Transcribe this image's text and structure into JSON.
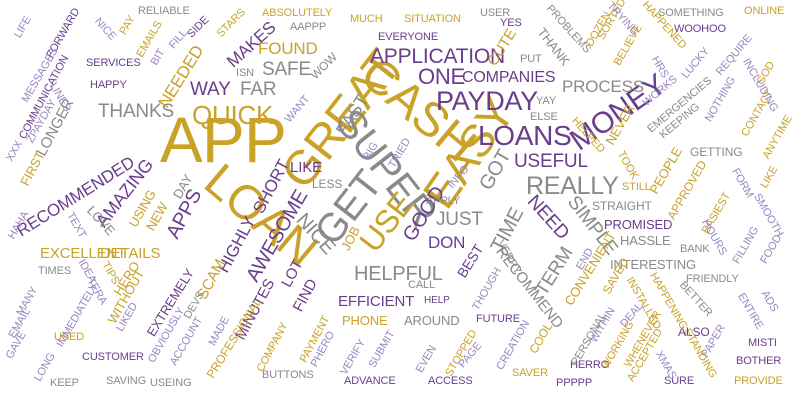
{
  "colors": {
    "gold": "#c9a227",
    "purple": "#6a3d8c",
    "lavender": "#9a86c0",
    "gray": "#8a8a8a"
  },
  "words": [
    {
      "text": "APP",
      "color": "gold"
    },
    {
      "text": "LOAN",
      "color": "gold"
    },
    {
      "text": "GREAT",
      "color": "gold"
    },
    {
      "text": "CASH",
      "color": "gold"
    },
    {
      "text": "EASY",
      "color": "gold"
    },
    {
      "text": "SUPER",
      "color": "gray"
    },
    {
      "text": "GET",
      "color": "gray"
    },
    {
      "text": "USE",
      "color": "gold"
    },
    {
      "text": "PAYDAY",
      "color": "purple"
    },
    {
      "text": "LOANS",
      "color": "purple"
    },
    {
      "text": "MONEY",
      "color": "purple"
    },
    {
      "text": "QUICK",
      "color": "gold"
    },
    {
      "text": "REALLY",
      "color": "gray"
    },
    {
      "text": "APPLICATION",
      "color": "purple"
    },
    {
      "text": "ONE",
      "color": "purple"
    },
    {
      "text": "THANKS",
      "color": "gray"
    },
    {
      "text": "AWESOME",
      "color": "purple"
    },
    {
      "text": "HELPFUL",
      "color": "gray"
    },
    {
      "text": "NICE",
      "color": "gray"
    },
    {
      "text": "FAST",
      "color": "gray"
    },
    {
      "text": "AMAZING",
      "color": "purple"
    },
    {
      "text": "RECOMMENDED",
      "color": "purple"
    },
    {
      "text": "APPS",
      "color": "purple"
    },
    {
      "text": "WAY",
      "color": "purple"
    },
    {
      "text": "FAR",
      "color": "gray"
    },
    {
      "text": "SAFE",
      "color": "gray"
    },
    {
      "text": "FOUND",
      "color": "gold"
    },
    {
      "text": "NEEDED",
      "color": "gold"
    },
    {
      "text": "MAKES",
      "color": "purple"
    },
    {
      "text": "COMPANIES",
      "color": "purple"
    },
    {
      "text": "PROCESS",
      "color": "gray"
    },
    {
      "text": "USEFUL",
      "color": "purple"
    },
    {
      "text": "GOT",
      "color": "gray"
    },
    {
      "text": "GOOD",
      "color": "purple"
    },
    {
      "text": "JUST",
      "color": "gray"
    },
    {
      "text": "DON",
      "color": "purple"
    },
    {
      "text": "TIME",
      "color": "gray"
    },
    {
      "text": "NEED",
      "color": "purple"
    },
    {
      "text": "SIMPLE",
      "color": "gray"
    },
    {
      "text": "TERM",
      "color": "gray"
    },
    {
      "text": "SHORT",
      "color": "purple"
    },
    {
      "text": "LIKE",
      "color": "purple"
    },
    {
      "text": "LESS",
      "color": "gray"
    },
    {
      "text": "EFFICIENT",
      "color": "purple"
    },
    {
      "text": "HIGHLY",
      "color": "purple"
    },
    {
      "text": "DETAILS",
      "color": "gold"
    },
    {
      "text": "EXCELLENT",
      "color": "gold"
    },
    {
      "text": "SCAM",
      "color": "gold"
    },
    {
      "text": "FIND",
      "color": "purple"
    },
    {
      "text": "LOT",
      "color": "purple"
    },
    {
      "text": "MINUTES",
      "color": "purple"
    },
    {
      "text": "PROFESSIONAL",
      "color": "gold"
    },
    {
      "text": "PHONE",
      "color": "gold"
    },
    {
      "text": "AROUND",
      "color": "gray"
    },
    {
      "text": "FUTURE",
      "color": "purple"
    },
    {
      "text": "STRAIGHT",
      "color": "gray"
    },
    {
      "text": "PROMISED",
      "color": "purple"
    },
    {
      "text": "HASSLE",
      "color": "gray"
    },
    {
      "text": "INTERESTING",
      "color": "gray"
    },
    {
      "text": "CONVENIENT",
      "color": "gold"
    },
    {
      "text": "RECOMMEND",
      "color": "gray"
    },
    {
      "text": "BEST",
      "color": "purple"
    },
    {
      "text": "ALSO",
      "color": "purple"
    },
    {
      "text": "SAVER",
      "color": "gold"
    },
    {
      "text": "ADVANCE",
      "color": "purple"
    },
    {
      "text": "ACCESS",
      "color": "purple"
    },
    {
      "text": "PPPPP",
      "color": "purple"
    },
    {
      "text": "HERRO",
      "color": "purple"
    },
    {
      "text": "SURE",
      "color": "purple"
    },
    {
      "text": "PROVIDE",
      "color": "gold"
    },
    {
      "text": "BOTHER",
      "color": "purple"
    },
    {
      "text": "MISTI",
      "color": "purple"
    },
    {
      "text": "BUTTONS",
      "color": "gray"
    },
    {
      "text": "SAVING",
      "color": "gray"
    },
    {
      "text": "USEING",
      "color": "gray"
    },
    {
      "text": "KEEP",
      "color": "gray"
    },
    {
      "text": "CUSTOMER",
      "color": "purple"
    },
    {
      "text": "USED",
      "color": "gold"
    },
    {
      "text": "TIMES",
      "color": "gray"
    },
    {
      "text": "HERO",
      "color": "gold"
    },
    {
      "text": "WITHOUT",
      "color": "gold"
    },
    {
      "text": "EXTREMELY",
      "color": "purple"
    },
    {
      "text": "USING",
      "color": "gold"
    },
    {
      "text": "NEW",
      "color": "gold"
    },
    {
      "text": "LOVE",
      "color": "gray"
    },
    {
      "text": "DAY",
      "color": "gray"
    },
    {
      "text": "FIRST",
      "color": "gold"
    },
    {
      "text": "LONGER",
      "color": "gray"
    },
    {
      "text": "HAPPY",
      "color": "purple"
    },
    {
      "text": "SERVICES",
      "color": "purple"
    },
    {
      "text": "ABSOLUTELY",
      "color": "gold"
    },
    {
      "text": "AAPPP",
      "color": "gray"
    },
    {
      "text": "MUCH",
      "color": "gold"
    },
    {
      "text": "SITUATION",
      "color": "gold"
    },
    {
      "text": "EVERYONE",
      "color": "purple"
    },
    {
      "text": "USER",
      "color": "gray"
    },
    {
      "text": "YES",
      "color": "purple"
    },
    {
      "text": "WOW",
      "color": "gray"
    },
    {
      "text": "ISN",
      "color": "gray"
    },
    {
      "text": "RELIABLE",
      "color": "gray"
    },
    {
      "text": "STARS",
      "color": "gold"
    },
    {
      "text": "SIDE",
      "color": "purple"
    },
    {
      "text": "FILL",
      "color": "lavender"
    },
    {
      "text": "EMAILS",
      "color": "gold"
    },
    {
      "text": "PAY",
      "color": "gold"
    },
    {
      "text": "NICE",
      "color": "lavender"
    },
    {
      "text": "FORWARD",
      "color": "purple"
    },
    {
      "text": "LIFE",
      "color": "lavender"
    },
    {
      "text": "MESSAGES",
      "color": "lavender"
    },
    {
      "text": "COMMUNICATION",
      "color": "purple"
    },
    {
      "text": "LINES",
      "color": "lavender"
    },
    {
      "text": "BIT",
      "color": "lavender"
    },
    {
      "text": "XXX",
      "color": "lavender"
    },
    {
      "text": "ZPAYDAY",
      "color": "lavender"
    },
    {
      "text": "CUTE",
      "color": "gold"
    },
    {
      "text": "PUT",
      "color": "gray"
    },
    {
      "text": "THANK",
      "color": "gray"
    },
    {
      "text": "PROBLEMS",
      "color": "gray"
    },
    {
      "text": "DOZEN",
      "color": "gold"
    },
    {
      "text": "SORTED",
      "color": "gold"
    },
    {
      "text": "BELIEVE",
      "color": "gold"
    },
    {
      "text": "TRYING",
      "color": "lavender"
    },
    {
      "text": "HAPPENED",
      "color": "gold"
    },
    {
      "text": "SOMETHING",
      "color": "gray"
    },
    {
      "text": "WOOHOO",
      "color": "purple"
    },
    {
      "text": "ONLINE",
      "color": "gold"
    },
    {
      "text": "HRS",
      "color": "lavender"
    },
    {
      "text": "LUCKY",
      "color": "lavender"
    },
    {
      "text": "REQUIRE",
      "color": "lavender"
    },
    {
      "text": "GOD",
      "color": "gold"
    },
    {
      "text": "INCLUDING",
      "color": "lavender"
    },
    {
      "text": "NOTHING",
      "color": "lavender"
    },
    {
      "text": "CONTACT",
      "color": "gold"
    },
    {
      "text": "ANYTIME",
      "color": "gold"
    },
    {
      "text": "EMERGENCIES",
      "color": "gray"
    },
    {
      "text": "KEEPING",
      "color": "gray"
    },
    {
      "text": "WORKS",
      "color": "lavender"
    },
    {
      "text": "NEVER",
      "color": "gold"
    },
    {
      "text": "HELPED",
      "color": "gold"
    },
    {
      "text": "ELSE",
      "color": "gray"
    },
    {
      "text": "YAY",
      "color": "gray"
    },
    {
      "text": "GETTING",
      "color": "gray"
    },
    {
      "text": "PEOPLE",
      "color": "gold"
    },
    {
      "text": "TOOK",
      "color": "gold"
    },
    {
      "text": "APPROVED",
      "color": "gold"
    },
    {
      "text": "FORM",
      "color": "lavender"
    },
    {
      "text": "LIKE",
      "color": "gold"
    },
    {
      "text": "SMOOTH",
      "color": "lavender"
    },
    {
      "text": "EASIEST",
      "color": "gold"
    },
    {
      "text": "STILL",
      "color": "gold"
    },
    {
      "text": "HOURS",
      "color": "lavender"
    },
    {
      "text": "FILLING",
      "color": "lavender"
    },
    {
      "text": "FOOD",
      "color": "lavender"
    },
    {
      "text": "BANK",
      "color": "gray"
    },
    {
      "text": "FRIENDLY",
      "color": "gray"
    },
    {
      "text": "BETTER",
      "color": "gray"
    },
    {
      "text": "ADS",
      "color": "lavender"
    },
    {
      "text": "ENTIRE",
      "color": "lavender"
    },
    {
      "text": "PAPER",
      "color": "lavender"
    },
    {
      "text": "STANDING",
      "color": "gold"
    },
    {
      "text": "HAPPENING",
      "color": "gold"
    },
    {
      "text": "SAVED",
      "color": "gold"
    },
    {
      "text": "INSTALLED",
      "color": "gold"
    },
    {
      "text": "WHENEVER",
      "color": "gold"
    },
    {
      "text": "WORKING",
      "color": "gold"
    },
    {
      "text": "ACCEPTED",
      "color": "gold"
    },
    {
      "text": "XMAS",
      "color": "lavender"
    },
    {
      "text": "DEAL",
      "color": "lavender"
    },
    {
      "text": "WITHIN",
      "color": "lavender"
    },
    {
      "text": "PERSONAL",
      "color": "gray"
    },
    {
      "text": "COOL",
      "color": "gold"
    },
    {
      "text": "CREATION",
      "color": "lavender"
    },
    {
      "text": "END",
      "color": "lavender"
    },
    {
      "text": "THOUGH",
      "color": "lavender"
    },
    {
      "text": "VERRY",
      "color": "gray"
    },
    {
      "text": "APPLY",
      "color": "gray"
    },
    {
      "text": "INFO",
      "color": "lavender"
    },
    {
      "text": "TRIED",
      "color": "lavender"
    },
    {
      "text": "BIG",
      "color": "lavender"
    },
    {
      "text": "WANT",
      "color": "lavender"
    },
    {
      "text": "JOB",
      "color": "gold"
    },
    {
      "text": "CALL",
      "color": "gray"
    },
    {
      "text": "HELP",
      "color": "purple"
    },
    {
      "text": "STOPPED",
      "color": "gold"
    },
    {
      "text": "PAGE",
      "color": "lavender"
    },
    {
      "text": "EVEN",
      "color": "lavender"
    },
    {
      "text": "SUBMIT",
      "color": "lavender"
    },
    {
      "text": "VERIFY",
      "color": "lavender"
    },
    {
      "text": "PHERO",
      "color": "lavender"
    },
    {
      "text": "PAYMENT",
      "color": "gold"
    },
    {
      "text": "COMPANY",
      "color": "gold"
    },
    {
      "text": "MADE",
      "color": "lavender"
    },
    {
      "text": "DEVS",
      "color": "gray"
    },
    {
      "text": "ACCOUNT",
      "color": "lavender"
    },
    {
      "text": "OBVIOUSLY",
      "color": "lavender"
    },
    {
      "text": "LIKED",
      "color": "lavender"
    },
    {
      "text": "TERA",
      "color": "lavender"
    },
    {
      "text": "IDEA",
      "color": "lavender"
    },
    {
      "text": "TIPS",
      "color": "gold"
    },
    {
      "text": "IMMEDIATELY",
      "color": "lavender"
    },
    {
      "text": "MANY",
      "color": "lavender"
    },
    {
      "text": "EMAIL",
      "color": "lavender"
    },
    {
      "text": "GAVE",
      "color": "lavender"
    },
    {
      "text": "LONG",
      "color": "lavender"
    },
    {
      "text": "HAHA",
      "color": "lavender"
    },
    {
      "text": "TEXT",
      "color": "lavender"
    }
  ]
}
